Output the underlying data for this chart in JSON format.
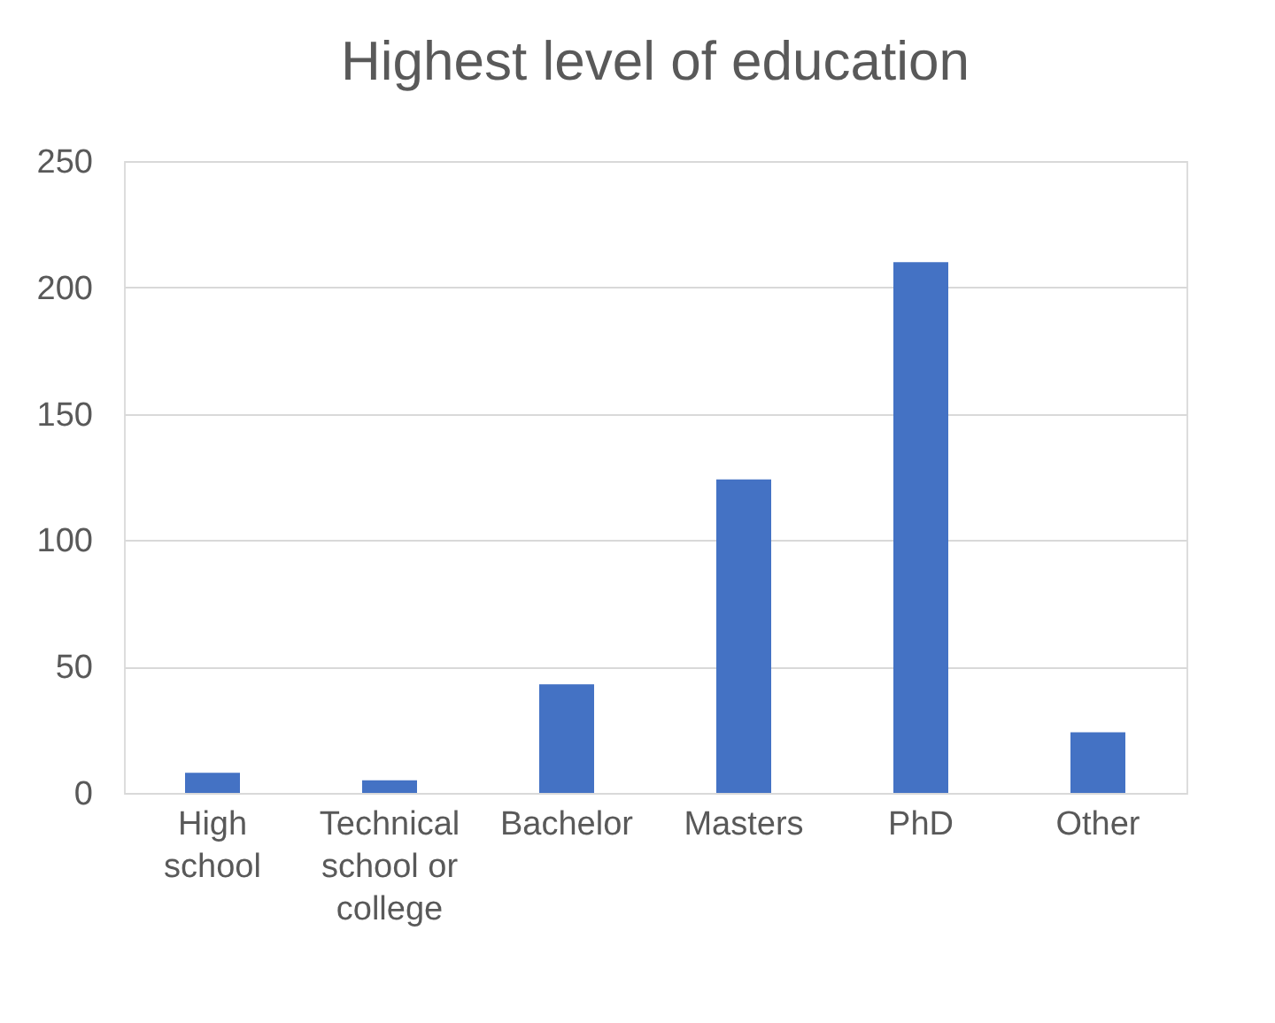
{
  "chart_data": {
    "type": "bar",
    "title": "Highest level of education",
    "categories": [
      "High school",
      "Technical school or college",
      "Bachelor",
      "Masters",
      "PhD",
      "Other"
    ],
    "values": [
      8,
      5,
      43,
      124,
      210,
      24
    ],
    "color": "#4472c4",
    "ylim": [
      0,
      250
    ],
    "yticks": [
      0,
      50,
      100,
      150,
      200,
      250
    ],
    "grid": "y"
  }
}
